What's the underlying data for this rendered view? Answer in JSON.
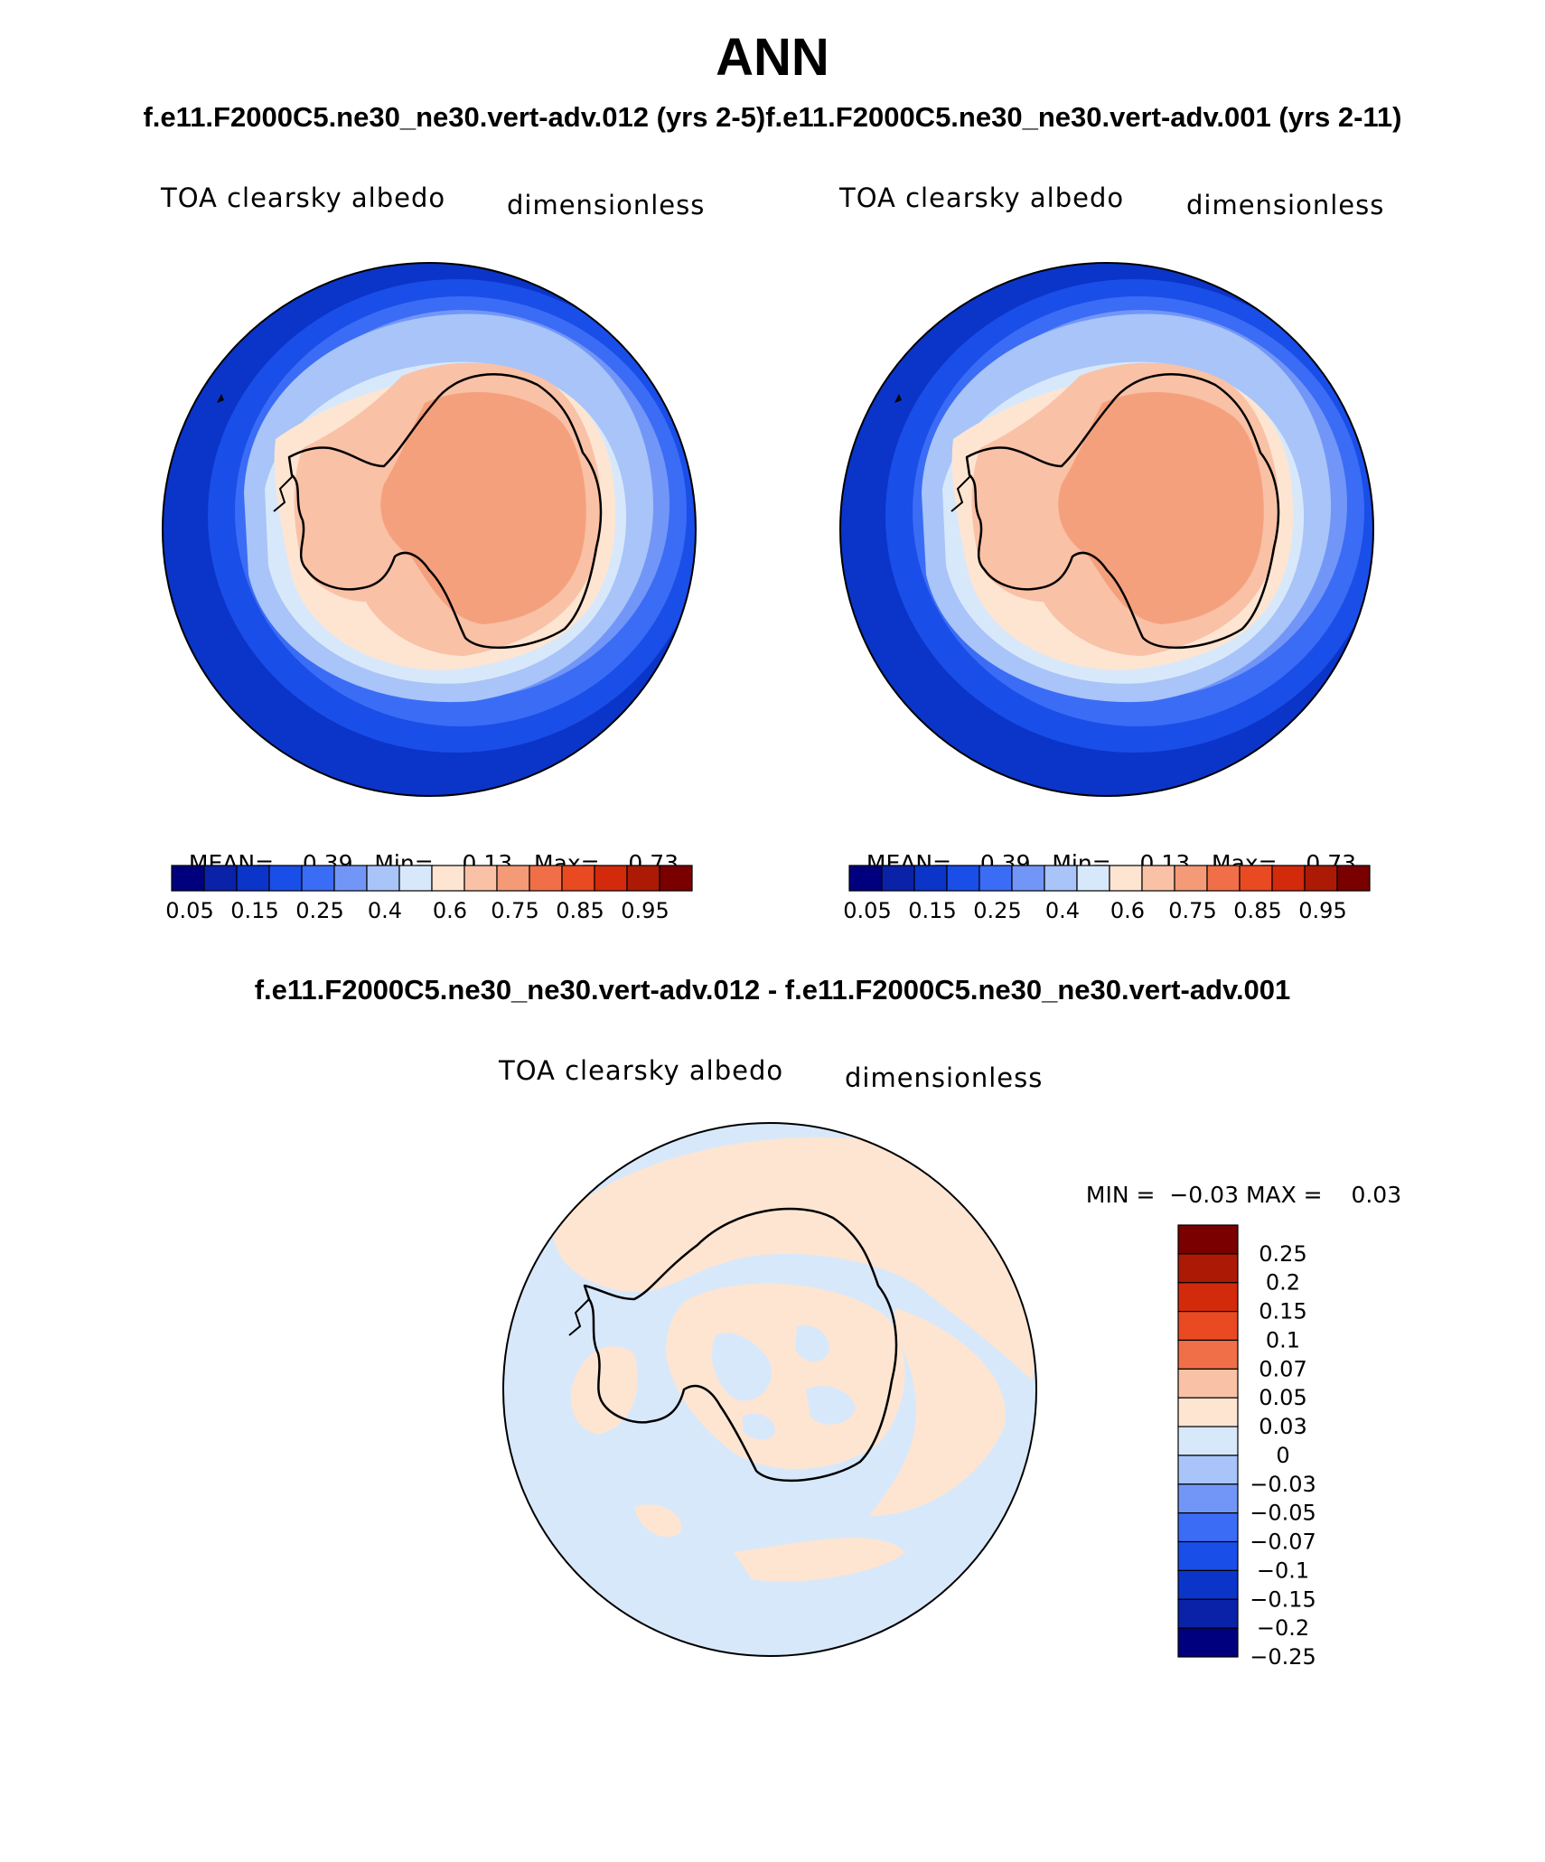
{
  "title": "ANN",
  "subtitle": "f.e11.F2000C5.ne30_ne30.vert-adv.012 (yrs 2-5)f.e11.F2000C5.ne30_ne30.vert-adv.001 (yrs 2-11)",
  "diff_title": "f.e11.F2000C5.ne30_ne30.vert-adv.012 - f.e11.F2000C5.ne30_ne30.vert-adv.001",
  "panels": [
    {
      "variable": "TOA clearsky albedo",
      "units": "dimensionless",
      "mean_label": "MEAN=",
      "mean": "0.39",
      "min_label": "Min=",
      "min": "0.13",
      "max_label": "Max=",
      "max": "0.73"
    },
    {
      "variable": "TOA clearsky albedo",
      "units": "dimensionless",
      "mean_label": "MEAN=",
      "mean": "0.39",
      "min_label": "Min=",
      "min": "0.13",
      "max_label": "Max=",
      "max": "0.73"
    }
  ],
  "diff_panel": {
    "variable": "TOA clearsky albedo",
    "units": "dimensionless",
    "min_label": "MIN =",
    "min": "−0.03",
    "max_label": "MAX =",
    "max": "0.03"
  },
  "colorbar_horizontal": {
    "colors": [
      "#00007e",
      "#0a22a8",
      "#0b35c9",
      "#1a4ee8",
      "#3b6cf5",
      "#7296f7",
      "#a8c4f8",
      "#d8e8fb",
      "#fde5d2",
      "#f9c1a6",
      "#f49a76",
      "#f06f48",
      "#e94a22",
      "#d42a0c",
      "#ac1a06",
      "#7a0000"
    ],
    "tick_labels": [
      "0.05",
      "0.15",
      "0.25",
      "0.4",
      "0.6",
      "0.75",
      "0.85",
      "0.95"
    ]
  },
  "colorbar_vertical": {
    "colors_top_to_bottom": [
      "#7a0000",
      "#ac1a06",
      "#d42a0c",
      "#e94a22",
      "#f06f48",
      "#f9c1a6",
      "#fde5d2",
      "#d8e8fb",
      "#a8c4f8",
      "#7296f7",
      "#3b6cf5",
      "#1a4ee8",
      "#0b35c9",
      "#0a22a8",
      "#00007e"
    ],
    "tick_labels": [
      "0.25",
      "0.2",
      "0.15",
      "0.1",
      "0.07",
      "0.05",
      "0.03",
      "0",
      "−0.03",
      "−0.05",
      "−0.07",
      "−0.1",
      "−0.15",
      "−0.2",
      "−0.25"
    ]
  }
}
